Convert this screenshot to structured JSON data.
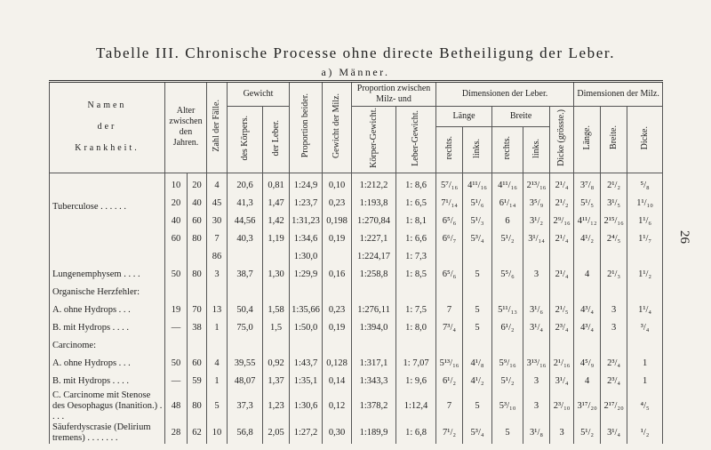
{
  "title": "Tabelle III. Chronische Processe ohne directe Betheiligung der Leber.",
  "subtitle": "a) Männer.",
  "page_number": "26",
  "header": {
    "name": [
      "Namen",
      "der",
      "Krankheit."
    ],
    "alter": "Alter zwischen den Jahren.",
    "zahl": "Zahl der Fälle.",
    "gewicht": "Gewicht",
    "gewicht_koerper": "des Körpers.",
    "gewicht_leber": "der Leber.",
    "proportion_beider": "Proportion beider.",
    "gewicht_milz": "Gewicht der Milz.",
    "proportion_milz": "Proportion zwischen Milz- und",
    "koerper_gewicht": "Körper-Gewicht.",
    "leber_gewicht": "Leber-Gewicht.",
    "dim_leber": "Dimensionen der Leber.",
    "laenge": "Länge",
    "breite": "Breite",
    "rechts_1": "rechts.",
    "links_1": "links.",
    "rechts_2": "rechts.",
    "links_2": "links.",
    "dicke_leber": "Dicke (grösste.)",
    "dim_milz": "Dimensionen der Milz.",
    "milz_laenge": "Länge.",
    "milz_breite": "Breite.",
    "milz_dicke": "Dicke."
  },
  "rows": [
    [
      null,
      "10",
      "20",
      "4",
      "20,6",
      "0,81",
      "1:24,9",
      "0,10",
      "1:212,2",
      "1: 8,6",
      "5⁷/₁₆",
      "4¹¹/₁₆",
      "4¹¹/₁₆",
      "2¹³/₁₆",
      "2¹/₄",
      "3⁷/₈",
      "2¹/₂",
      "⁵/₈"
    ],
    [
      "Tuberculose . . . . . .",
      "20",
      "40",
      "45",
      "41,3",
      "1,47",
      "1:23,7",
      "0,23",
      "1:193,8",
      "1: 6,5",
      "7¹/₁₄",
      "5¹/₆",
      "6¹/₁₄",
      "3⁵/₉",
      "2¹/₂",
      "5¹/₅",
      "3¹/₅",
      "1¹/₁₀"
    ],
    [
      null,
      "40",
      "60",
      "30",
      "44,56",
      "1,42",
      "1:31,23",
      "0,198",
      "1:270,84",
      "1: 8,1",
      "6⁵/₆",
      "5¹/₃",
      "6",
      "3¹/₂",
      "2⁹/₁₆",
      "4¹¹/₁₂",
      "2¹⁵/₁₆",
      "1¹/₆"
    ],
    [
      null,
      "60",
      "80",
      "7",
      "40,3",
      "1,19",
      "1:34,6",
      "0,19",
      "1:227,1",
      "1: 6,6",
      "6⁶/₇",
      "5³/₄",
      "5¹/₂",
      "3¹/₁₄",
      "2¹/₄",
      "4¹/₂",
      "2⁴/₅",
      "1¹/₇"
    ],
    [
      null,
      null,
      null,
      "86",
      null,
      null,
      "1:30,0",
      null,
      "1:224,17",
      "1: 7,3",
      null,
      null,
      null,
      null,
      null,
      null,
      null,
      null
    ],
    [
      "Lungenemphysem . . . .",
      "50",
      "80",
      "3",
      "38,7",
      "1,30",
      "1:29,9",
      "0,16",
      "1:258,8",
      "1: 8,5",
      "6⁵/₆",
      "5",
      "5⁵/₆",
      "3",
      "2¹/₄",
      "4",
      "2¹/₃",
      "1¹/₂"
    ],
    [
      "Organische Herzfehler:",
      null,
      null,
      null,
      null,
      null,
      null,
      null,
      null,
      null,
      null,
      null,
      null,
      null,
      null,
      null,
      null,
      null
    ],
    [
      "A. ohne Hydrops . . .",
      "19",
      "70",
      "13",
      "50,4",
      "1,58",
      "1:35,66",
      "0,23",
      "1:276,11",
      "1: 7,5",
      "7",
      "5",
      "5¹¹/₁₃",
      "3¹/₆",
      "2¹/₅",
      "4³/₄",
      "3",
      "1¹/₄"
    ],
    [
      "B. mit Hydrops . . . .",
      "—",
      "38",
      "1",
      "75,0",
      "1,5",
      "1:50,0",
      "0,19",
      "1:394,0",
      "1: 8,0",
      "7³/₄",
      "5",
      "6¹/₂",
      "3¹/₄",
      "2³/₄",
      "4³/₄",
      "3",
      "³/₄"
    ],
    [
      "Carcinome:",
      null,
      null,
      null,
      null,
      null,
      null,
      null,
      null,
      null,
      null,
      null,
      null,
      null,
      null,
      null,
      null,
      null
    ],
    [
      "A. ohne Hydrops . . .",
      "50",
      "60",
      "4",
      "39,55",
      "0,92",
      "1:43,7",
      "0,128",
      "1:317,1",
      "1: 7,07",
      "5¹³/₁₆",
      "4¹/₈",
      "5⁹/₁₆",
      "3¹³/₁₆",
      "2¹/₁₆",
      "4⁵/₉",
      "2³/₄",
      "1"
    ],
    [
      "B. mit Hydrops . . . .",
      "—",
      "59",
      "1",
      "48,07",
      "1,37",
      "1:35,1",
      "0,14",
      "1:343,3",
      "1: 9,6",
      "6¹/₂",
      "4¹/₂",
      "5¹/₂",
      "3",
      "3¹/₄",
      "4",
      "2³/₄",
      "1"
    ],
    [
      "C. Carcinome mit Stenose des Oesophagus (Inanition.) . . . .",
      "48",
      "80",
      "5",
      "37,3",
      "1,23",
      "1:30,6",
      "0,12",
      "1:378,2",
      "1:12,4",
      "7",
      "5",
      "5³/₁₀",
      "3",
      "2³/₁₀",
      "3¹⁷/₂₀",
      "2¹⁷/₂₀",
      "⁴/₅"
    ],
    [
      "Säuferdyscrasie (Delirium tremens) . . . . . . .",
      "28",
      "62",
      "10",
      "56,8",
      "2,05",
      "1:27,2",
      "0,30",
      "1:189,9",
      "1: 6,8",
      "7¹/₂",
      "5³/₄",
      "5",
      "3¹/₈",
      "3",
      "5¹/₂",
      "3¹/₄",
      "¹/₂"
    ]
  ]
}
